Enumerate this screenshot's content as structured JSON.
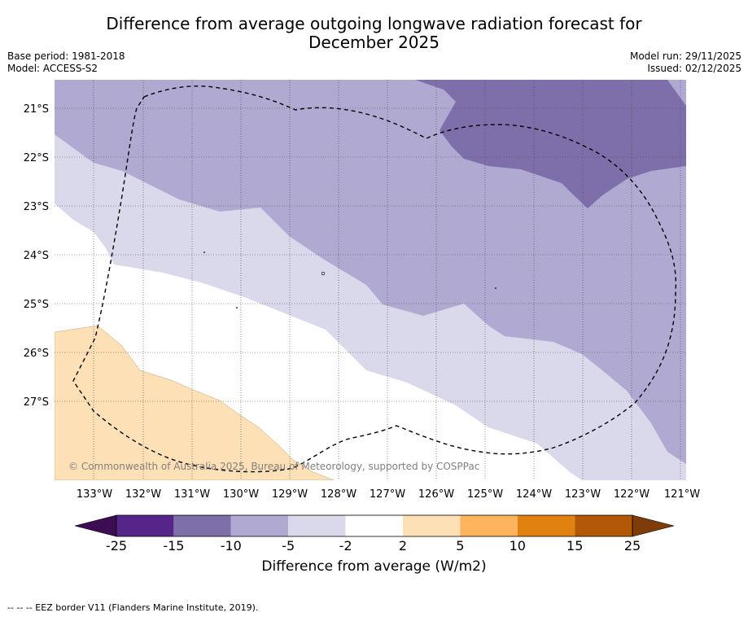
{
  "title_line1": "Difference from average outgoing longwave radiation forecast for",
  "title_line2": "December 2025",
  "base_period": "Base period: 1981-2018",
  "model": "Model: ACCESS-S2",
  "model_run": "Model run: 29/11/2025",
  "issued": "Issued: 02/12/2025",
  "map": {
    "lat_labels": [
      "21°S",
      "22°S",
      "23°S",
      "24°S",
      "25°S",
      "26°S",
      "27°S"
    ],
    "lon_labels": [
      "133°W",
      "132°W",
      "131°W",
      "130°W",
      "129°W",
      "128°W",
      "127°W",
      "126°W",
      "125°W",
      "124°W",
      "123°W",
      "122°W",
      "121°W"
    ],
    "copyright": "© Commonwealth of Australia 2025, Bureau of Meteorology, supported by COSPPac",
    "regions": [
      {
        "range": "-15 to -10",
        "color": "#7e6fab"
      },
      {
        "range": "-10 to -5",
        "color": "#b0a9d1"
      },
      {
        "range": "-5 to -2",
        "color": "#d9d9eb"
      },
      {
        "range": "-2 to 2",
        "color": "#ffffff"
      },
      {
        "range": "2 to 5",
        "color": "#fde0b5"
      }
    ]
  },
  "colorbar": {
    "ticks": [
      "-25",
      "-15",
      "-10",
      "-5",
      "-2",
      "2",
      "5",
      "10",
      "15",
      "25"
    ],
    "colors": [
      "#3d0d53",
      "#55258a",
      "#7e6fab",
      "#b0a9d1",
      "#d9d9eb",
      "#ffffff",
      "#fde0b5",
      "#fdb45d",
      "#e1810f",
      "#b35806",
      "#7f3b08"
    ],
    "label": "Difference from average (W/m2)"
  },
  "footnote": "--  --  -- EEZ border V11 (Flanders Marine Institute, 2019)."
}
